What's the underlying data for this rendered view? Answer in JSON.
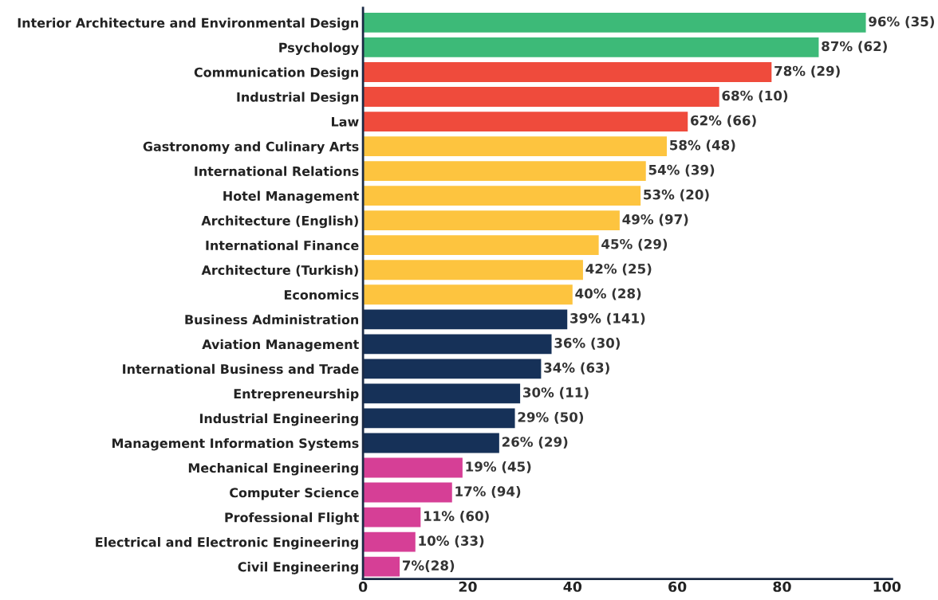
{
  "chart_data": {
    "type": "bar",
    "orientation": "horizontal",
    "categories": [
      "Interior Architecture and Environmental Design",
      "Psychology",
      "Communication Design",
      "Industrial Design",
      "Law",
      "Gastronomy and Culinary Arts",
      "International Relations",
      "Hotel Management",
      "Architecture (English)",
      "International Finance",
      "Architecture (Turkish)",
      "Economics",
      "Business Administration",
      "Aviation Management",
      "International Business and Trade",
      "Entrepreneurship",
      "Industrial Engineering",
      "Management Information Systems",
      "Mechanical Engineering",
      "Computer Science",
      "Professional Flight",
      "Electrical and Electronic Engineering",
      "Civil Engineering"
    ],
    "values": [
      96,
      87,
      78,
      68,
      62,
      58,
      54,
      53,
      49,
      45,
      42,
      40,
      39,
      36,
      34,
      30,
      29,
      26,
      19,
      17,
      11,
      10,
      7
    ],
    "value_labels": [
      "96% (35)",
      "87% (62)",
      "78% (29)",
      "68% (10)",
      "62% (66)",
      "58% (48)",
      "54% (39)",
      "53% (20)",
      "49% (97)",
      "45% (29)",
      "42% (25)",
      "40% (28)",
      "39% (141)",
      "36% (30)",
      "34% (63)",
      "30% (11)",
      "29% (50)",
      "26% (29)",
      "19% (45)",
      "17% (94)",
      "11% (60)",
      "10% (33)",
      "7%(28)"
    ],
    "colors": [
      "#3dba78",
      "#3dba78",
      "#ef4b3c",
      "#ef4b3c",
      "#ef4b3c",
      "#fdc43f",
      "#fdc43f",
      "#fdc43f",
      "#fdc43f",
      "#fdc43f",
      "#fdc43f",
      "#fdc43f",
      "#163158",
      "#163158",
      "#163158",
      "#163158",
      "#163158",
      "#163158",
      "#d63f96",
      "#d63f96",
      "#d63f96",
      "#d63f96",
      "#d63f96"
    ],
    "xlim": [
      0,
      101
    ],
    "xticks": [
      0,
      20,
      40,
      60,
      80,
      100
    ]
  }
}
